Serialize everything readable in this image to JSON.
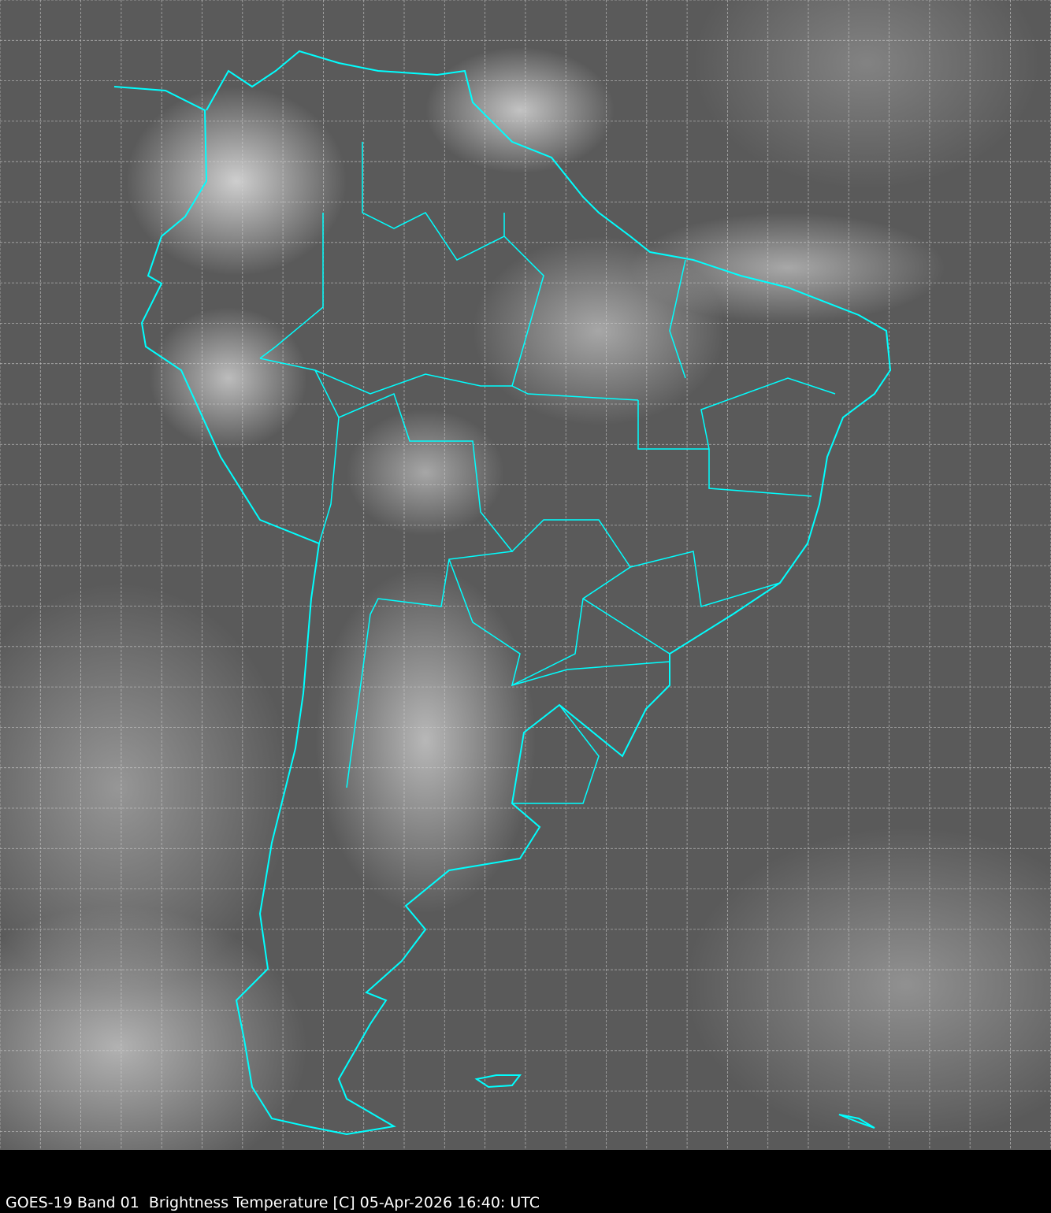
{
  "map": {
    "satellite_caption": "GOES-19 Band 01  Brightness Temperature [C] 05-Apr-2026 16:40: UTC",
    "border_color": "#00ffff",
    "grid_color": "#d0d0d0",
    "background_color": "#000000"
  }
}
